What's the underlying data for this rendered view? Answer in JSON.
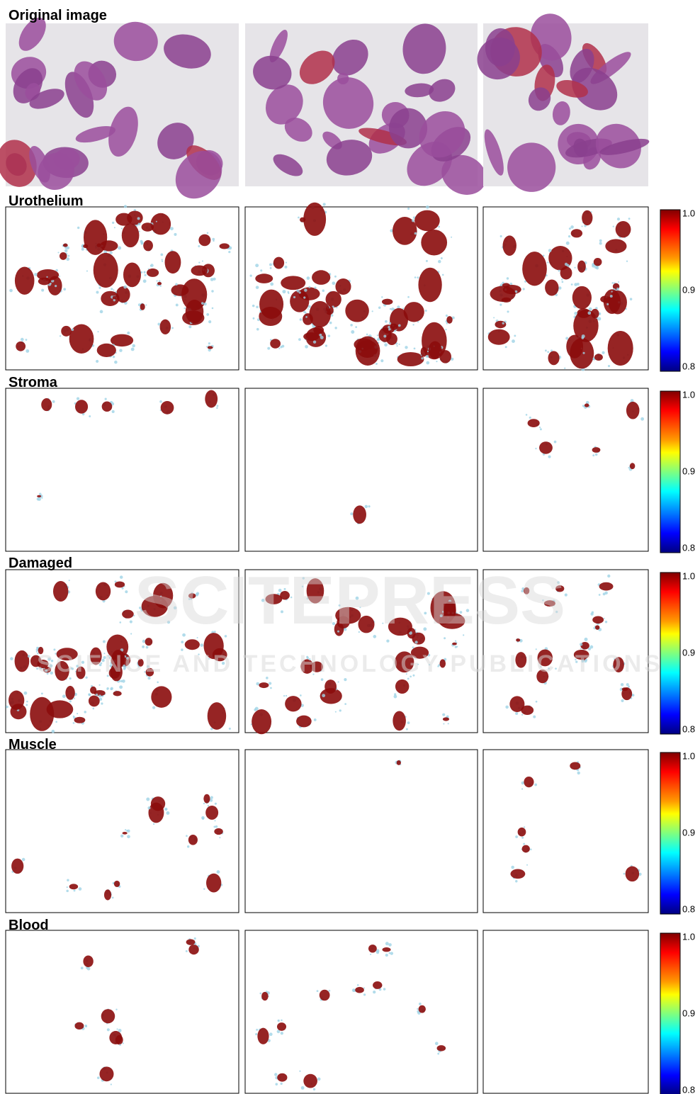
{
  "figure": {
    "rows": [
      {
        "title": "Original image"
      },
      {
        "title": "Urothelium"
      },
      {
        "title": "Stroma"
      },
      {
        "title": "Damaged"
      },
      {
        "title": "Muscle"
      },
      {
        "title": "Blood"
      }
    ],
    "colorbar": {
      "ticks": [
        "1.0",
        "0.9",
        "0.8"
      ]
    },
    "watermark": {
      "brand": "SCITEPRESS",
      "tagline": "SCIENCE AND TECHNOLOGY PUBLICATIONS"
    }
  }
}
